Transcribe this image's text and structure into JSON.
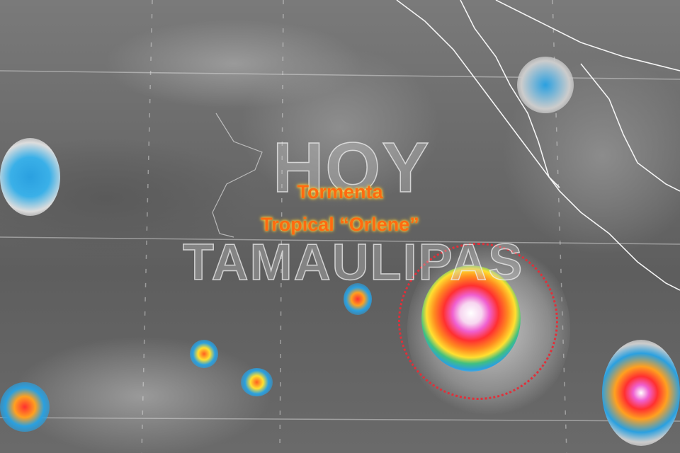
{
  "annotation": {
    "line1": "Tormenta",
    "line2": "Tropical “Orlene”",
    "color": "#ff6a10"
  },
  "watermark": {
    "line1": "HOY",
    "line2": "TAMAULIPAS"
  },
  "highlight": {
    "shape": "dotted-circle",
    "color": "#e0303a"
  },
  "image": {
    "type": "infrared satellite image",
    "palette": [
      "#ffffff",
      "#f060d0",
      "#ff3030",
      "#ff8a20",
      "#ffe030",
      "#2aa0e0"
    ]
  }
}
